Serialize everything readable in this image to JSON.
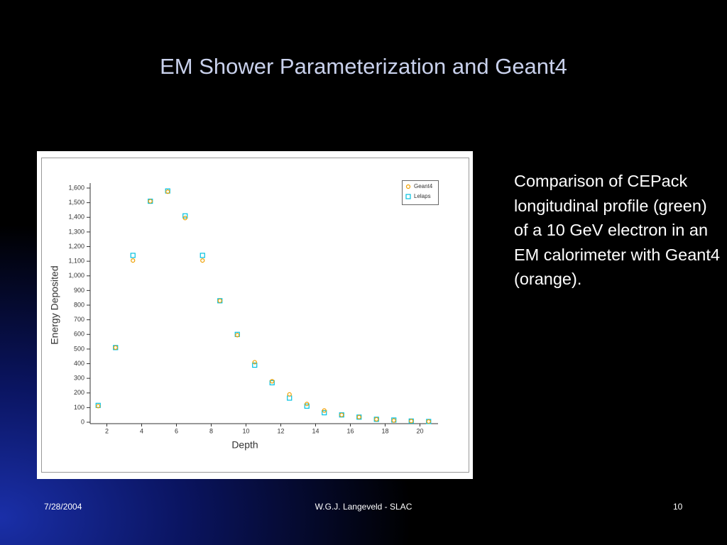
{
  "slide": {
    "title": "EM Shower Parameterization and Geant4",
    "body": "Comparison of CEPack longitudinal profile (green) of a 10 GeV electron in an EM calorimeter with Geant4 (orange).",
    "footer": {
      "date": "7/28/2004",
      "author": "W.G.J. Langeveld - SLAC",
      "page": "10"
    }
  },
  "chart_data": {
    "type": "scatter",
    "x_label": "Depth",
    "y_label": "Energy Deposited",
    "x": [
      1.5,
      2.5,
      3.5,
      4.5,
      5.5,
      6.5,
      7.5,
      8.5,
      9.5,
      10.5,
      11.5,
      12.5,
      13.5,
      14.5,
      15.5,
      16.5,
      17.5,
      18.5,
      19.5,
      20.5
    ],
    "series": [
      {
        "name": "Geant4",
        "color": "#f0a000",
        "marker": "circle",
        "values": [
          110,
          510,
          1105,
          1510,
          1575,
          1395,
          1105,
          830,
          595,
          410,
          280,
          190,
          125,
          80,
          50,
          35,
          20,
          12,
          8,
          5
        ]
      },
      {
        "name": "Lelaps",
        "color": "#00c0e0",
        "marker": "square",
        "values": [
          115,
          510,
          1140,
          1510,
          1580,
          1410,
          1140,
          830,
          600,
          390,
          270,
          165,
          110,
          65,
          50,
          35,
          20,
          15,
          8,
          5
        ]
      }
    ],
    "xlim": [
      1,
      21
    ],
    "ylim": [
      0,
      1600
    ],
    "xticks": [
      2,
      4,
      6,
      8,
      10,
      12,
      14,
      16,
      18,
      20
    ],
    "yticks": [
      0,
      100,
      200,
      300,
      400,
      500,
      600,
      700,
      800,
      900,
      {
        "value": 1000,
        "label": "1,000"
      },
      {
        "value": 1100,
        "label": "1,100"
      },
      {
        "value": 1200,
        "label": "1,200"
      },
      {
        "value": 1300,
        "label": "1,300"
      },
      {
        "value": 1400,
        "label": "1,400"
      },
      {
        "value": 1500,
        "label": "1,500"
      },
      {
        "value": 1600,
        "label": "1,600"
      }
    ],
    "legend": "upper right"
  }
}
